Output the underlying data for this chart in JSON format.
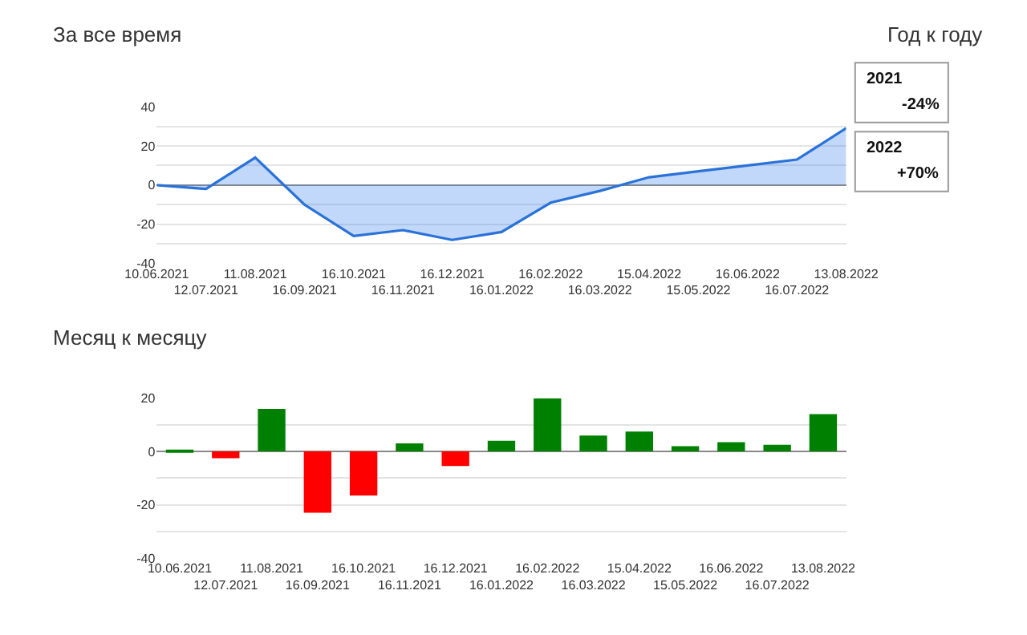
{
  "chart_data": [
    {
      "type": "area",
      "title": "За все время",
      "categories": [
        "10.06.2021",
        "12.07.2021",
        "11.08.2021",
        "16.09.2021",
        "16.10.2021",
        "16.11.2021",
        "16.12.2021",
        "16.01.2022",
        "16.02.2022",
        "16.03.2022",
        "15.04.2022",
        "15.05.2022",
        "16.06.2022",
        "16.07.2022",
        "13.08.2022"
      ],
      "series": [
        {
          "color": "#2a72d8",
          "values": [
            0,
            -2,
            14,
            -10,
            -26,
            -23,
            -28,
            -24,
            -9,
            -3,
            4,
            7,
            10,
            13,
            29
          ]
        }
      ],
      "ylim": [
        -40,
        40
      ],
      "yticks": [
        -40,
        {
          "value": -30,
          "label": null
        },
        -20,
        {
          "value": -10,
          "label": null
        },
        0,
        {
          "value": 10,
          "label": null
        },
        20,
        {
          "value": 30,
          "label": null
        },
        40
      ],
      "grid": "y"
    },
    {
      "type": "other",
      "title": "Год к году",
      "annotations": [
        "2021",
        "-24%",
        "2022",
        "+70%"
      ]
    },
    {
      "type": "bar",
      "title": "Месяц к месяцу",
      "categories": [
        "10.06.2021",
        "12.07.2021",
        "11.08.2021",
        "16.09.2021",
        "16.10.2021",
        "16.11.2021",
        "16.12.2021",
        "16.01.2022",
        "16.02.2022",
        "16.03.2022",
        "15.04.2022",
        "15.05.2022",
        "16.06.2022",
        "16.07.2022",
        "13.08.2022"
      ],
      "values": [
        0.5,
        -2.5,
        16,
        -23,
        -16.5,
        3,
        -5.5,
        4,
        20,
        6,
        7.5,
        2,
        3.5,
        2.5,
        14
      ],
      "colors": [
        "#008000",
        "#ff0000",
        "#008000",
        "#ff0000",
        "#ff0000",
        "#008000",
        "#ff0000",
        "#008000",
        "#008000",
        "#008000",
        "#008000",
        "#008000",
        "#008000",
        "#008000",
        "#008000"
      ],
      "ylim": [
        -40,
        20
      ],
      "yticks": [
        -40,
        {
          "value": -30,
          "label": null
        },
        -20,
        {
          "value": -10,
          "label": null
        },
        0,
        {
          "value": 10,
          "label": null
        },
        20
      ],
      "grid": "y"
    }
  ]
}
